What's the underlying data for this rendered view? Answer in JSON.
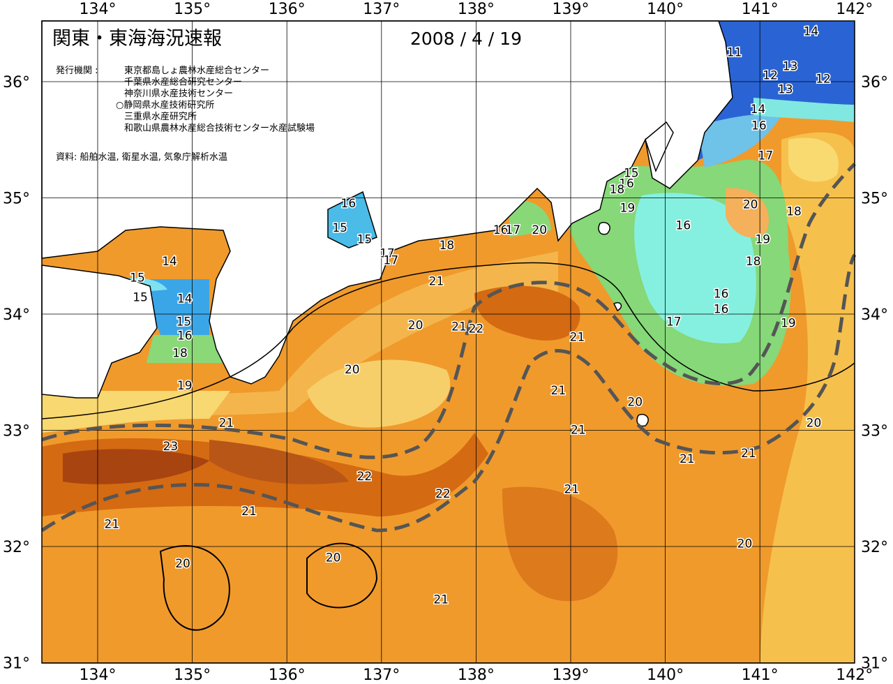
{
  "header": {
    "title": "関東・東海海況速報",
    "date": "2008 / 4 / 19",
    "publisher_label": "発行機関 :",
    "publishers": [
      "東京都島しょ農林水産総合センター",
      "千葉県水産総合研究センター",
      "神奈川県水産技術センター",
      "○静岡県水産技術研究所",
      "三重県水産研究所",
      "和歌山県農林水産総合技術センター水産試験場"
    ],
    "source": "資料: 船舶水温, 衛星水温, 気象庁解析水温"
  },
  "map": {
    "lon_ticks": [
      {
        "value": 134,
        "label": "134°"
      },
      {
        "value": 135,
        "label": "135°"
      },
      {
        "value": 136,
        "label": "136°"
      },
      {
        "value": 137,
        "label": "137°"
      },
      {
        "value": 138,
        "label": "138°"
      },
      {
        "value": 139,
        "label": "139°"
      },
      {
        "value": 140,
        "label": "140°"
      },
      {
        "value": 141,
        "label": "141°"
      },
      {
        "value": 142,
        "label": "142°"
      }
    ],
    "lat_ticks": [
      {
        "value": 36,
        "label": "36°"
      },
      {
        "value": 35,
        "label": "35°"
      },
      {
        "value": 34,
        "label": "34°"
      },
      {
        "value": 33,
        "label": "33°"
      },
      {
        "value": 32,
        "label": "32°"
      },
      {
        "value": 31,
        "label": "31°"
      }
    ],
    "contour_labels": [
      {
        "value": 14,
        "lon": 141.54,
        "lat": 36.43
      },
      {
        "value": 11,
        "lon": 140.73,
        "lat": 36.25
      },
      {
        "value": 13,
        "lon": 141.32,
        "lat": 36.13
      },
      {
        "value": 12,
        "lon": 141.11,
        "lat": 36.05
      },
      {
        "value": 12,
        "lon": 141.67,
        "lat": 36.02
      },
      {
        "value": 13,
        "lon": 141.27,
        "lat": 35.93
      },
      {
        "value": 14,
        "lon": 140.98,
        "lat": 35.76
      },
      {
        "value": 16,
        "lon": 140.99,
        "lat": 35.62
      },
      {
        "value": 17,
        "lon": 141.06,
        "lat": 35.36
      },
      {
        "value": 15,
        "lon": 139.64,
        "lat": 35.21
      },
      {
        "value": 16,
        "lon": 139.59,
        "lat": 35.12
      },
      {
        "value": 18,
        "lon": 139.49,
        "lat": 35.07
      },
      {
        "value": 19,
        "lon": 139.6,
        "lat": 34.91
      },
      {
        "value": 20,
        "lon": 140.9,
        "lat": 34.94
      },
      {
        "value": 18,
        "lon": 141.36,
        "lat": 34.88
      },
      {
        "value": 16,
        "lon": 140.19,
        "lat": 34.76
      },
      {
        "value": 19,
        "lon": 141.03,
        "lat": 34.64
      },
      {
        "value": 18,
        "lon": 140.93,
        "lat": 34.45
      },
      {
        "value": 16,
        "lon": 140.59,
        "lat": 34.17
      },
      {
        "value": 16,
        "lon": 140.59,
        "lat": 34.04
      },
      {
        "value": 17,
        "lon": 140.09,
        "lat": 33.93
      },
      {
        "value": 19,
        "lon": 141.3,
        "lat": 33.92
      },
      {
        "value": 16,
        "lon": 136.65,
        "lat": 34.95
      },
      {
        "value": 15,
        "lon": 136.56,
        "lat": 34.74
      },
      {
        "value": 15,
        "lon": 136.82,
        "lat": 34.64
      },
      {
        "value": 17,
        "lon": 137.06,
        "lat": 34.52
      },
      {
        "value": 17,
        "lon": 137.1,
        "lat": 34.46
      },
      {
        "value": 18,
        "lon": 137.69,
        "lat": 34.59
      },
      {
        "value": 16,
        "lon": 138.26,
        "lat": 34.72
      },
      {
        "value": 17,
        "lon": 138.39,
        "lat": 34.72
      },
      {
        "value": 20,
        "lon": 138.67,
        "lat": 34.72
      },
      {
        "value": 14,
        "lon": 134.76,
        "lat": 34.45
      },
      {
        "value": 15,
        "lon": 134.42,
        "lat": 34.31
      },
      {
        "value": 15,
        "lon": 134.45,
        "lat": 34.14
      },
      {
        "value": 14,
        "lon": 134.92,
        "lat": 34.13
      },
      {
        "value": 15,
        "lon": 134.91,
        "lat": 33.93
      },
      {
        "value": 16,
        "lon": 134.92,
        "lat": 33.81
      },
      {
        "value": 18,
        "lon": 134.87,
        "lat": 33.66
      },
      {
        "value": 19,
        "lon": 134.92,
        "lat": 33.38
      },
      {
        "value": 21,
        "lon": 137.58,
        "lat": 34.28
      },
      {
        "value": 20,
        "lon": 137.36,
        "lat": 33.9
      },
      {
        "value": 21,
        "lon": 137.82,
        "lat": 33.89
      },
      {
        "value": 22,
        "lon": 138.0,
        "lat": 33.87
      },
      {
        "value": 21,
        "lon": 139.07,
        "lat": 33.8
      },
      {
        "value": 20,
        "lon": 136.69,
        "lat": 33.52
      },
      {
        "value": 21,
        "lon": 138.87,
        "lat": 33.34
      },
      {
        "value": 20,
        "lon": 139.68,
        "lat": 33.24
      },
      {
        "value": 21,
        "lon": 135.36,
        "lat": 33.06
      },
      {
        "value": 20,
        "lon": 141.57,
        "lat": 33.06
      },
      {
        "value": 21,
        "lon": 139.08,
        "lat": 33.0
      },
      {
        "value": 23,
        "lon": 134.77,
        "lat": 32.86
      },
      {
        "value": 21,
        "lon": 140.23,
        "lat": 32.75
      },
      {
        "value": 21,
        "lon": 140.88,
        "lat": 32.8
      },
      {
        "value": 22,
        "lon": 136.82,
        "lat": 32.6
      },
      {
        "value": 22,
        "lon": 137.65,
        "lat": 32.45
      },
      {
        "value": 21,
        "lon": 139.01,
        "lat": 32.49
      },
      {
        "value": 21,
        "lon": 135.6,
        "lat": 32.3
      },
      {
        "value": 21,
        "lon": 134.15,
        "lat": 32.19
      },
      {
        "value": 20,
        "lon": 140.84,
        "lat": 32.02
      },
      {
        "value": 20,
        "lon": 136.49,
        "lat": 31.9
      },
      {
        "value": 20,
        "lon": 134.9,
        "lat": 31.85
      },
      {
        "value": 21,
        "lon": 137.63,
        "lat": 31.54
      }
    ]
  }
}
